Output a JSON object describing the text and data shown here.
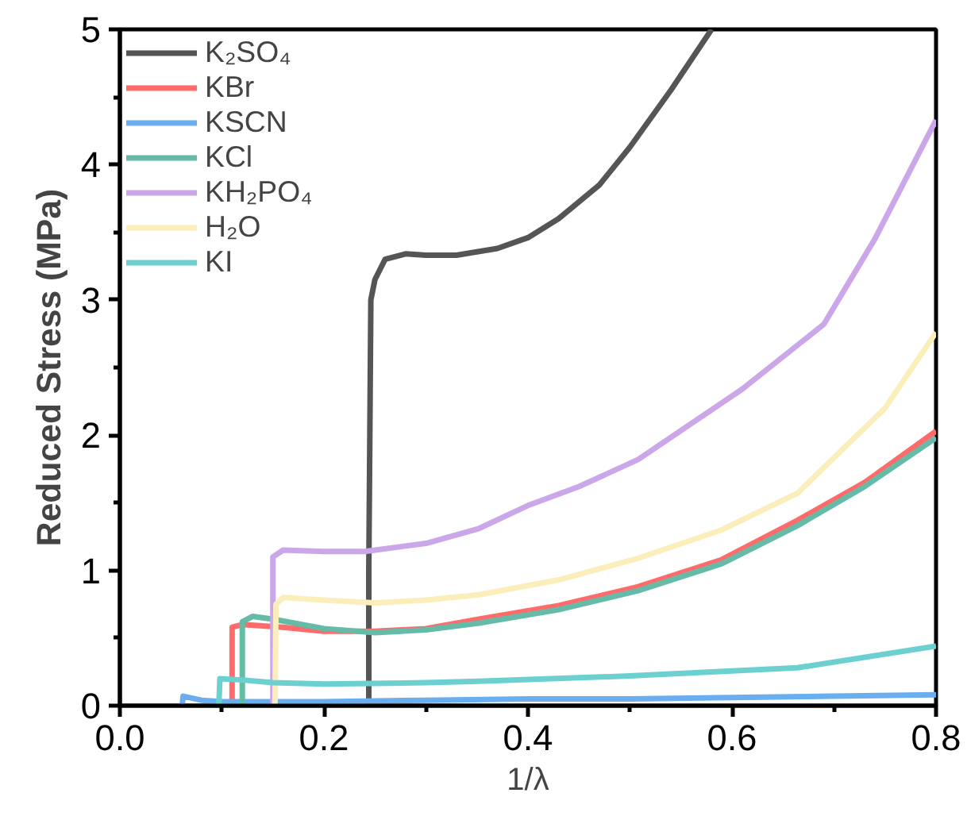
{
  "chart_data": {
    "type": "line",
    "xlabel": "1/λ",
    "ylabel": "Reduced Stress (MPa)",
    "xlim": [
      0,
      0.8
    ],
    "ylim": [
      0,
      5
    ],
    "xticks": [
      {
        "value": 0,
        "label": "0.0"
      },
      {
        "value": 0.1,
        "label": null
      },
      {
        "value": 0.2,
        "label": "0.2"
      },
      {
        "value": 0.3,
        "label": null
      },
      {
        "value": 0.4,
        "label": "0.4"
      },
      {
        "value": 0.5,
        "label": null
      },
      {
        "value": 0.6,
        "label": "0.6"
      },
      {
        "value": 0.7,
        "label": null
      },
      {
        "value": 0.8,
        "label": "0.8"
      }
    ],
    "yticks": [
      0,
      {
        "value": 0.5,
        "label": null
      },
      1,
      {
        "value": 1.5,
        "label": null
      },
      2,
      {
        "value": 2.5,
        "label": null
      },
      3,
      {
        "value": 3.5,
        "label": null
      },
      4,
      {
        "value": 4.5,
        "label": null
      },
      5
    ],
    "grid": false,
    "legend": "top left",
    "marker": "none",
    "line_style": "solid",
    "series": [
      {
        "name": "K₂SO₄",
        "color": "#555555",
        "x": [
          0.244,
          0.244,
          0.245,
          0.246,
          0.25,
          0.26,
          0.28,
          0.3,
          0.33,
          0.37,
          0.4,
          0.43,
          0.47,
          0.5,
          0.54,
          0.58
        ],
        "values": [
          0,
          1,
          2,
          3,
          3.15,
          3.3,
          3.34,
          3.33,
          3.33,
          3.38,
          3.46,
          3.6,
          3.85,
          4.13,
          4.55,
          5.0
        ]
      },
      {
        "name": "KBr",
        "color": "#ff6b6b",
        "x": [
          0.11,
          0.11,
          0.12,
          0.16,
          0.2,
          0.25,
          0.3,
          0.352,
          0.43,
          0.508,
          0.59,
          0.664,
          0.73,
          0.8
        ],
        "values": [
          0,
          0.58,
          0.6,
          0.58,
          0.55,
          0.55,
          0.57,
          0.64,
          0.74,
          0.88,
          1.08,
          1.37,
          1.65,
          2.03
        ]
      },
      {
        "name": "KSCN",
        "color": "#6aaef0",
        "x": [
          0.061,
          0.062,
          0.08,
          0.1,
          0.2,
          0.3,
          0.4,
          0.5,
          0.6,
          0.7,
          0.8
        ],
        "values": [
          0,
          0.07,
          0.04,
          0.03,
          0.03,
          0.04,
          0.05,
          0.05,
          0.06,
          0.07,
          0.08
        ]
      },
      {
        "name": "KCl",
        "color": "#66bba8",
        "x": [
          0.12,
          0.12,
          0.13,
          0.15,
          0.2,
          0.25,
          0.3,
          0.352,
          0.43,
          0.508,
          0.59,
          0.664,
          0.73,
          0.8
        ],
        "values": [
          0,
          0.62,
          0.66,
          0.64,
          0.57,
          0.54,
          0.56,
          0.61,
          0.71,
          0.85,
          1.05,
          1.33,
          1.62,
          1.98
        ]
      },
      {
        "name": "KH₂PO₄",
        "color": "#cba6e8",
        "x": [
          0.15,
          0.15,
          0.16,
          0.2,
          0.24,
          0.3,
          0.352,
          0.4,
          0.45,
          0.508,
          0.61,
          0.69,
          0.74,
          0.8
        ],
        "values": [
          0,
          1.1,
          1.15,
          1.14,
          1.14,
          1.2,
          1.31,
          1.48,
          1.62,
          1.82,
          2.34,
          2.82,
          3.45,
          4.33
        ]
      },
      {
        "name": "H₂O",
        "color": "#fbeebb",
        "x": [
          0.152,
          0.153,
          0.16,
          0.2,
          0.25,
          0.3,
          0.352,
          0.43,
          0.508,
          0.59,
          0.664,
          0.75,
          0.8
        ],
        "values": [
          0,
          0.75,
          0.8,
          0.78,
          0.76,
          0.78,
          0.82,
          0.93,
          1.09,
          1.3,
          1.57,
          2.2,
          2.76
        ]
      },
      {
        "name": "KI",
        "color": "#6dd0d0",
        "x": [
          0.097,
          0.098,
          0.12,
          0.15,
          0.2,
          0.3,
          0.352,
          0.5,
          0.664,
          0.8
        ],
        "values": [
          0,
          0.2,
          0.19,
          0.17,
          0.16,
          0.17,
          0.18,
          0.22,
          0.28,
          0.44
        ]
      }
    ]
  }
}
